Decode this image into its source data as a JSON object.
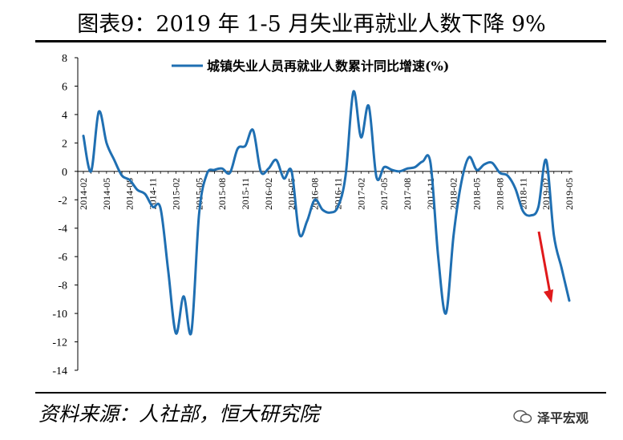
{
  "title": "图表9：2019 年 1-5 月失业再就业人数下降 9%",
  "source_text": "资料来源：人社部，恒大研究院",
  "watermark": "泽平宏观",
  "colors": {
    "line": "#1f6fb2",
    "arrow": "#e0191b"
  },
  "chart_data": {
    "type": "line",
    "series": [
      {
        "name": "城镇失业人员再就业人数累计同比增速(%)",
        "x": [
          "2014-02",
          "2014-03",
          "2014-04",
          "2014-05",
          "2014-06",
          "2014-07",
          "2014-08",
          "2014-09",
          "2014-10",
          "2014-11",
          "2014-12",
          "2015-01",
          "2015-02",
          "2015-03",
          "2015-04",
          "2015-05",
          "2015-06",
          "2015-07",
          "2015-08",
          "2015-09",
          "2015-10",
          "2015-11",
          "2015-12",
          "2016-01",
          "2016-02",
          "2016-03",
          "2016-04",
          "2016-05",
          "2016-06",
          "2016-07",
          "2016-08",
          "2016-09",
          "2016-10",
          "2016-11",
          "2016-12",
          "2017-01",
          "2017-02",
          "2017-03",
          "2017-04",
          "2017-05",
          "2017-06",
          "2017-07",
          "2017-08",
          "2017-09",
          "2017-10",
          "2017-11",
          "2017-12",
          "2018-01",
          "2018-02",
          "2018-03",
          "2018-04",
          "2018-05",
          "2018-06",
          "2018-07",
          "2018-08",
          "2018-09",
          "2018-10",
          "2018-11",
          "2018-12",
          "2019-01",
          "2019-02",
          "2019-03",
          "2019-04",
          "2019-05"
        ],
        "values": [
          2.5,
          0.0,
          4.2,
          2.0,
          0.8,
          -0.3,
          -0.6,
          -1.3,
          -1.6,
          -2.5,
          -2.6,
          -7.0,
          -11.4,
          -8.8,
          -11.3,
          -3.0,
          -0.2,
          0.1,
          0.2,
          -0.1,
          1.6,
          1.8,
          2.9,
          0.0,
          0.2,
          0.8,
          -0.5,
          0.0,
          -4.4,
          -3.5,
          -2.0,
          -2.7,
          -2.9,
          -2.5,
          -0.3,
          5.6,
          2.4,
          4.6,
          -0.4,
          0.3,
          0.1,
          0.0,
          0.2,
          0.3,
          0.7,
          0.6,
          -6.0,
          -10.0,
          -4.5,
          -0.8,
          1.0,
          0.1,
          0.5,
          0.6,
          -0.1,
          -0.3,
          -1.2,
          -2.8,
          -3.1,
          -2.5,
          0.8,
          -4.5,
          -6.8,
          -9.1
        ]
      }
    ],
    "xticks": [
      "2014-02",
      "2014-05",
      "2014-08",
      "2014-11",
      "2015-02",
      "2015-05",
      "2015-08",
      "2015-11",
      "2016-02",
      "2016-05",
      "2016-08",
      "2016-11",
      "2017-02",
      "2017-05",
      "2017-08",
      "2017-11",
      "2018-02",
      "2018-05",
      "2018-08",
      "2018-11",
      "2019-02",
      "2019-05"
    ],
    "yticks": [
      "8",
      "6",
      "4",
      "2",
      "0",
      "-2",
      "-4",
      "-6",
      "-8",
      "-10",
      "-12",
      "-14"
    ],
    "ylim": [
      -14,
      8
    ],
    "legend_position": "top-center",
    "annotation": "red arrow pointing down near 2019-05"
  }
}
